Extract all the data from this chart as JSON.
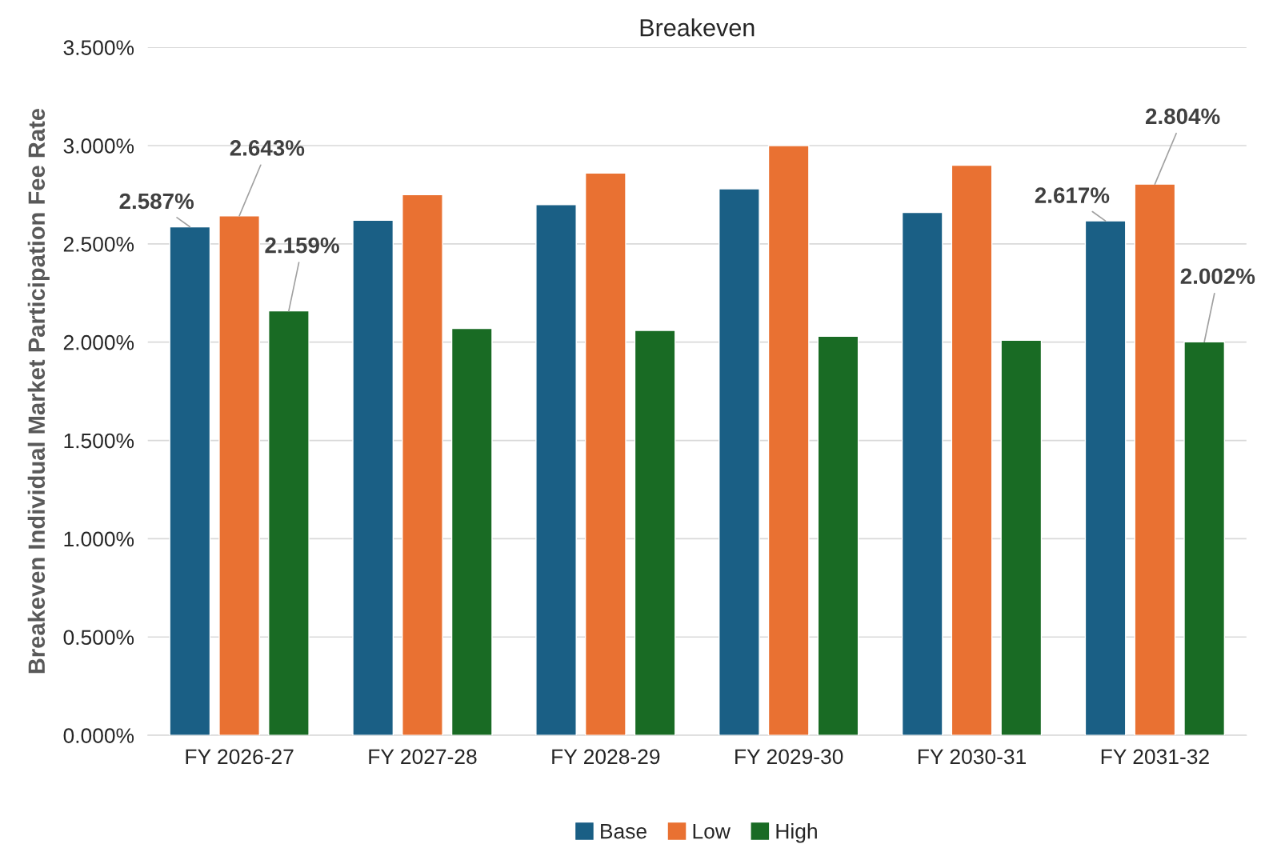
{
  "chart_data": {
    "type": "bar",
    "title": "Breakeven",
    "ylabel": "Breakeven Individual Market Participation Fee Rate",
    "categories": [
      "FY 2026-27",
      "FY 2027-28",
      "FY 2028-29",
      "FY 2029-30",
      "FY 2030-31",
      "FY 2031-32"
    ],
    "series": [
      {
        "name": "Base",
        "color": "#1a5f85",
        "values": [
          2.587,
          2.62,
          2.7,
          2.78,
          2.66,
          2.617
        ],
        "value_labels": [
          "2.587%",
          null,
          null,
          null,
          null,
          "2.617%"
        ]
      },
      {
        "name": "Low",
        "color": "#e97132",
        "values": [
          2.643,
          2.75,
          2.86,
          3.0,
          2.9,
          2.804
        ],
        "value_labels": [
          "2.643%",
          null,
          null,
          null,
          null,
          "2.804%"
        ]
      },
      {
        "name": "High",
        "color": "#196b24",
        "values": [
          2.159,
          2.07,
          2.06,
          2.03,
          2.01,
          2.002
        ],
        "value_labels": [
          "2.159%",
          null,
          null,
          null,
          null,
          "2.002%"
        ]
      }
    ],
    "ylim": [
      0,
      3.5
    ],
    "yticks": [
      {
        "value": 0,
        "label": "0.000%"
      },
      {
        "value": 0.5,
        "label": "0.500%"
      },
      {
        "value": 1,
        "label": "1.000%"
      },
      {
        "value": 1.5,
        "label": "1.500%"
      },
      {
        "value": 2,
        "label": "2.000%"
      },
      {
        "value": 2.5,
        "label": "2.500%"
      },
      {
        "value": 3,
        "label": "3.000%"
      },
      {
        "value": 3.5,
        "label": "3.500%"
      }
    ],
    "grid": "y",
    "legend": "bottom"
  }
}
